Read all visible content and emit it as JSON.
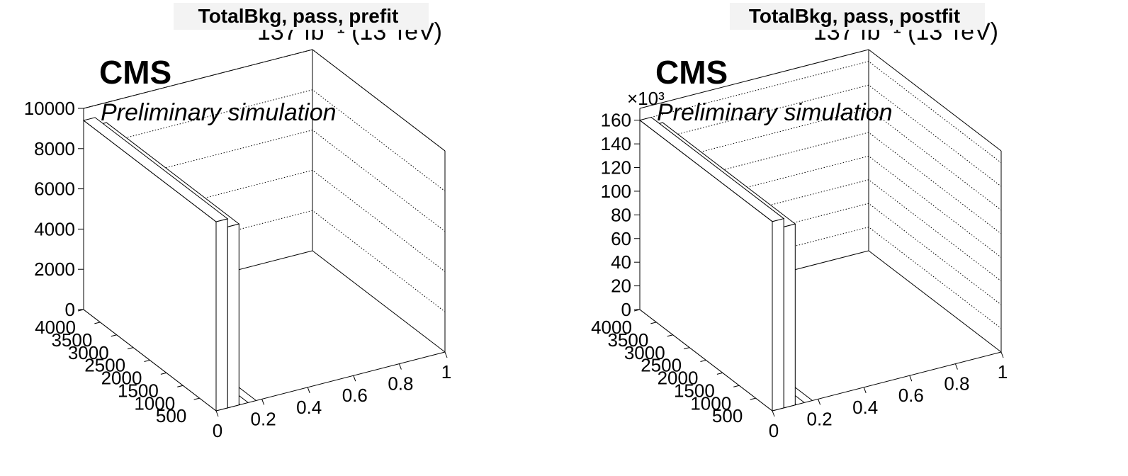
{
  "chart_data": [
    {
      "type": "lego3d",
      "title": "TotalBkg, pass, prefit",
      "lumi_label": "137 fb⁻¹ (13 TeV)",
      "cms_label": "CMS",
      "extra_label": "Preliminary simulation",
      "z_range": [
        0,
        10000
      ],
      "z_ticks": [
        "0",
        "2000",
        "4000",
        "6000",
        "8000",
        "10000"
      ],
      "z_multiplier": "",
      "x_range": [
        0,
        1
      ],
      "x_ticks": [
        "0",
        "0.2",
        "0.4",
        "0.6",
        "0.8",
        "1"
      ],
      "y_range": [
        0,
        4000
      ],
      "y_ticks": [
        "500",
        "1000",
        "1500",
        "2000",
        "2500",
        "3000",
        "3500",
        "4000"
      ],
      "bars": [
        {
          "x_bin": [
            0,
            0.05
          ],
          "y_bin": [
            0,
            4000
          ],
          "value": 9400
        },
        {
          "x_bin": [
            0.05,
            0.1
          ],
          "y_bin": [
            0,
            4000
          ],
          "value": 9000
        }
      ]
    },
    {
      "type": "lego3d",
      "title": "TotalBkg, pass, postfit",
      "lumi_label": "137 fb⁻¹ (13 TeV)",
      "cms_label": "CMS",
      "extra_label": "Preliminary simulation",
      "z_range": [
        0,
        170
      ],
      "z_ticks": [
        "0",
        "20",
        "40",
        "60",
        "80",
        "100",
        "120",
        "140",
        "160"
      ],
      "z_multiplier": "×10³",
      "x_range": [
        0,
        1
      ],
      "x_ticks": [
        "0",
        "0.2",
        "0.4",
        "0.6",
        "0.8",
        "1"
      ],
      "y_range": [
        0,
        4000
      ],
      "y_ticks": [
        "500",
        "1000",
        "1500",
        "2000",
        "2500",
        "3000",
        "3500",
        "4000"
      ],
      "bars": [
        {
          "x_bin": [
            0,
            0.05
          ],
          "y_bin": [
            0,
            4000
          ],
          "value": 160
        },
        {
          "x_bin": [
            0.05,
            0.1
          ],
          "y_bin": [
            0,
            4000
          ],
          "value": 153
        }
      ]
    }
  ]
}
